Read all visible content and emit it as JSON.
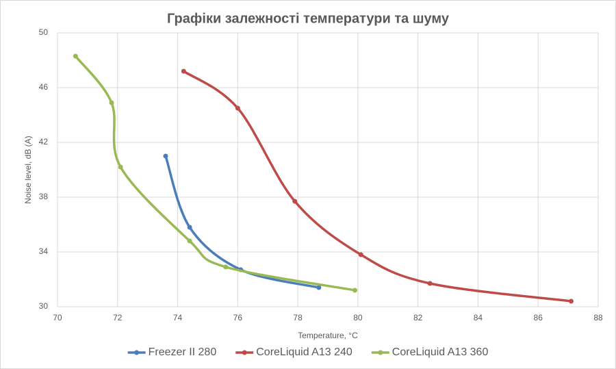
{
  "chart_data": {
    "type": "scatter",
    "title": "Графіки залежності температури та шуму",
    "x_label": "Temperature, °C",
    "y_label": "Noise level, dB (A)",
    "xlim": [
      70,
      88
    ],
    "xticks": [
      70,
      72,
      74,
      76,
      78,
      80,
      82,
      84,
      86,
      88
    ],
    "ylim": [
      30,
      50
    ],
    "yticks": [
      30,
      34,
      38,
      42,
      46,
      50
    ],
    "grid": true,
    "smooth": true,
    "legend": "bottom",
    "series": [
      {
        "name": "Freezer II 280",
        "color": "#4a7ebb",
        "x": [
          73.6,
          74.4,
          76.1,
          78.7
        ],
        "values": [
          41.0,
          35.8,
          32.7,
          31.4
        ]
      },
      {
        "name": "CoreLiquid A13 240",
        "color": "#be4b48",
        "x": [
          74.2,
          76.0,
          77.9,
          80.1,
          82.4,
          87.1
        ],
        "values": [
          47.2,
          44.5,
          37.7,
          33.8,
          31.7,
          30.4
        ]
      },
      {
        "name": "CoreLiquid A13 360",
        "color": "#98b954",
        "x": [
          70.6,
          71.8,
          72.1,
          74.4,
          75.6,
          79.9
        ],
        "values": [
          48.3,
          44.9,
          40.2,
          34.8,
          32.9,
          31.2
        ]
      }
    ]
  }
}
